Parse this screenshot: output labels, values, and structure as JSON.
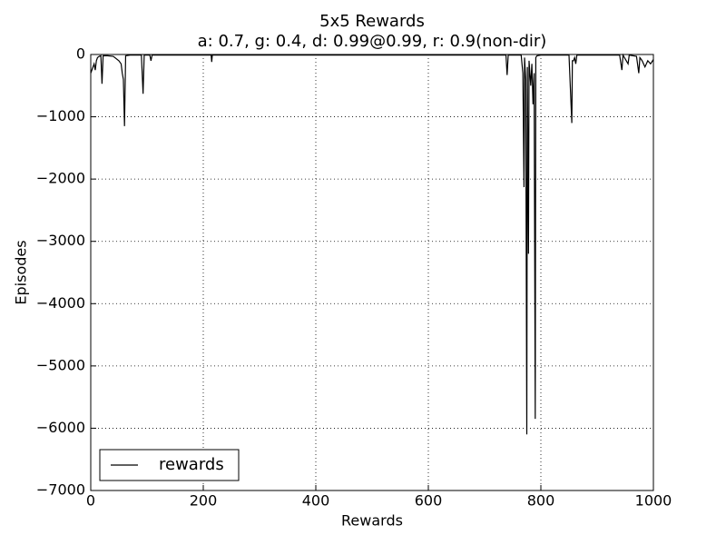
{
  "chart_data": {
    "type": "line",
    "title": "5x5 Rewards",
    "subtitle": "a: 0.7, g: 0.4, d: 0.99@0.99, r: 0.9(non-dir)",
    "x_label": "Rewards",
    "y_label": "Episodes",
    "xlim": [
      0,
      1000
    ],
    "ylim": [
      -7000,
      0
    ],
    "xticks": [
      0,
      200,
      400,
      600,
      800,
      1000
    ],
    "yticks": [
      0,
      {
        "value": -1000,
        "label": "−1000"
      },
      {
        "value": -2000,
        "label": "−2000"
      },
      {
        "value": -3000,
        "label": "−3000"
      },
      {
        "value": -4000,
        "label": "−4000"
      },
      {
        "value": -5000,
        "label": "−5000"
      },
      {
        "value": -6000,
        "label": "−6000"
      },
      {
        "value": -7000,
        "label": "−7000"
      }
    ],
    "grid": true,
    "legend": "lower left",
    "x": [
      0,
      2,
      4,
      6,
      8,
      10,
      12,
      15,
      18,
      20,
      22,
      30,
      40,
      50,
      54,
      56,
      58,
      60,
      62,
      70,
      90,
      93,
      95,
      105,
      107,
      109,
      200,
      214,
      215,
      216,
      300,
      500,
      700,
      738,
      740,
      742,
      765,
      768,
      770,
      771,
      773,
      775,
      776,
      778,
      779,
      782,
      784,
      786,
      788,
      790,
      791,
      793,
      800,
      850,
      855,
      856,
      858,
      860,
      862,
      864,
      940,
      944,
      946,
      955,
      957,
      970,
      974,
      976,
      980,
      985,
      990,
      995,
      1000
    ],
    "series": [
      {
        "name": "rewards",
        "color": "#000000",
        "values": [
          -300,
          -250,
          -200,
          -150,
          -250,
          -100,
          -50,
          -30,
          -20,
          -470,
          -20,
          -20,
          -30,
          -100,
          -150,
          -300,
          -400,
          -1150,
          -20,
          -10,
          -10,
          -630,
          -10,
          -10,
          -100,
          -10,
          -10,
          -10,
          -120,
          -10,
          -10,
          -10,
          -10,
          -10,
          -330,
          -10,
          -10,
          -300,
          -2130,
          -50,
          -400,
          -6100,
          -200,
          -3200,
          -100,
          -500,
          -150,
          -800,
          -300,
          -5850,
          -50,
          -20,
          -10,
          -10,
          -1100,
          -100,
          -100,
          -50,
          -150,
          -10,
          -10,
          -250,
          -10,
          -150,
          -10,
          -30,
          -300,
          -50,
          -100,
          -200,
          -100,
          -150,
          -80
        ]
      }
    ]
  }
}
